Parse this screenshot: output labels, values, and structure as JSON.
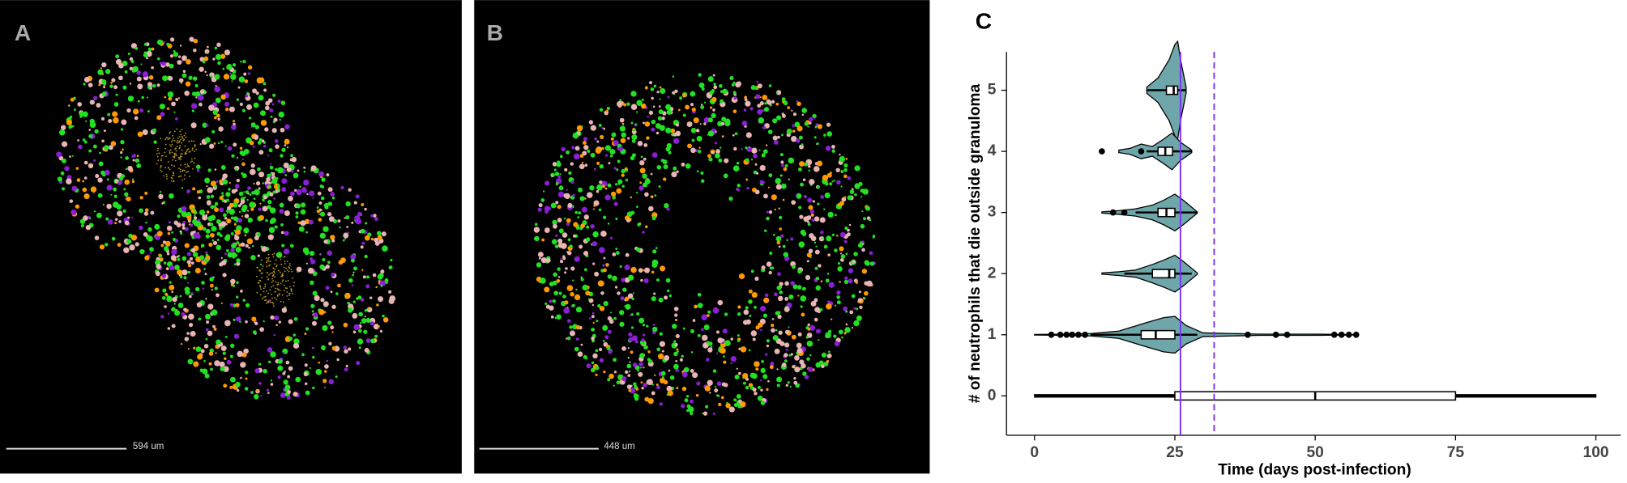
{
  "panels": {
    "a": {
      "label": "A",
      "scale_bar": "594 um"
    },
    "b": {
      "label": "B",
      "scale_bar": "448 um"
    }
  },
  "chart_data": {
    "type": "violin",
    "panel_label": "C",
    "x_label": "Time (days post-infection)",
    "y_label": "# of neutrophils that die outside granuloma",
    "categories": [
      "0",
      "1",
      "2",
      "3",
      "4",
      "5"
    ],
    "xlim": [
      -5,
      105
    ],
    "xticks": [
      0,
      25,
      50,
      75,
      100
    ],
    "color": "#6fa6aa",
    "boxes": [
      {
        "q1": 25,
        "median": 50,
        "q3": 75,
        "whisker_low": 0,
        "whisker_high": 100,
        "outliers": []
      },
      {
        "q1": 19,
        "median": 21.6,
        "q3": 25,
        "whisker_low": 10,
        "whisker_high": 29,
        "outliers": [
          3,
          4.6,
          5.7,
          6.7,
          7.8,
          9,
          38,
          43,
          45,
          53.4,
          54.7,
          56,
          57.3
        ]
      },
      {
        "q1": 21,
        "median": 24,
        "q3": 25,
        "whisker_low": 16,
        "whisker_high": 28,
        "outliers": []
      },
      {
        "q1": 22,
        "median": 23.5,
        "q3": 25,
        "whisker_low": 18,
        "whisker_high": 29,
        "outliers": [
          14,
          16
        ]
      },
      {
        "q1": 22,
        "median": 23.3,
        "q3": 24.6,
        "whisker_low": 20,
        "whisker_high": 28,
        "outliers": [
          12,
          19
        ]
      },
      {
        "q1": 23.5,
        "median": 24.8,
        "q3": 25.5,
        "whisker_low": 20,
        "whisker_high": 27,
        "outliers": []
      }
    ],
    "density": [
      {
        "x": [
          0,
          100
        ],
        "width": [
          0.02,
          0.02
        ]
      },
      {
        "x": [
          0,
          5,
          10,
          15,
          20,
          23,
          25,
          27,
          30,
          40,
          50,
          57
        ],
        "width": [
          0.005,
          0.01,
          0.02,
          0.06,
          0.2,
          0.28,
          0.3,
          0.15,
          0.03,
          0.01,
          0.01,
          0.005
        ]
      },
      {
        "x": [
          12,
          15,
          18,
          21,
          23,
          25,
          26.5,
          29
        ],
        "width": [
          0.01,
          0.03,
          0.06,
          0.15,
          0.22,
          0.3,
          0.2,
          0.01
        ]
      },
      {
        "x": [
          12,
          15,
          18,
          21,
          23,
          25,
          26.5,
          29
        ],
        "width": [
          0.01,
          0.03,
          0.06,
          0.12,
          0.2,
          0.3,
          0.2,
          0.01
        ]
      },
      {
        "x": [
          15,
          17,
          19,
          21,
          23,
          24.5,
          26,
          28
        ],
        "width": [
          0.02,
          0.05,
          0.12,
          0.08,
          0.2,
          0.3,
          0.15,
          0.02
        ]
      },
      {
        "x": [
          20,
          22,
          24,
          25,
          25.5,
          26,
          27
        ],
        "width": [
          0.05,
          0.2,
          0.5,
          0.75,
          0.8,
          0.5,
          0.05
        ]
      }
    ],
    "reference_lines": [
      {
        "value": 26,
        "style": "solid",
        "color": "#7b2ff7"
      },
      {
        "value": 32,
        "style": "dashed",
        "color": "#7b2ff7"
      }
    ]
  }
}
